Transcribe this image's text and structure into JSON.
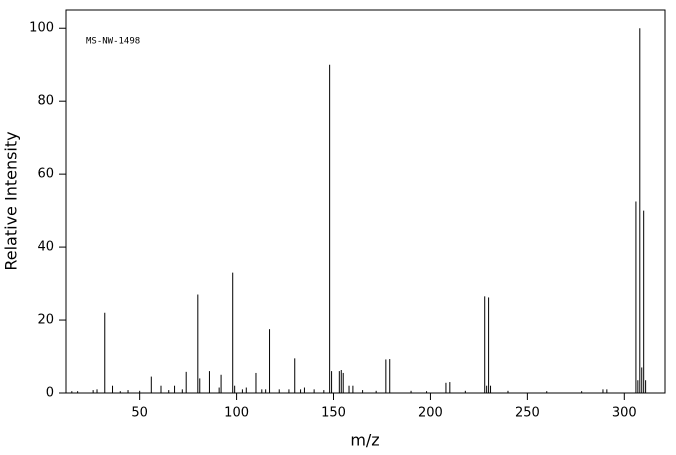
{
  "chart_data": {
    "type": "stem",
    "annotation": "MS-NW-1498",
    "x_label": "m/z",
    "y_label": "Relative Intensity",
    "color": "#000000",
    "x": [
      15,
      18,
      26,
      28,
      32,
      36,
      40,
      44,
      50,
      56,
      61,
      65,
      68,
      72,
      74,
      80,
      81,
      86,
      91,
      92,
      98,
      99,
      103,
      105,
      110,
      113,
      115,
      117,
      122,
      127,
      130,
      133,
      135,
      140,
      145,
      148,
      149,
      153,
      154,
      155,
      158,
      160,
      165,
      172,
      177,
      179,
      190,
      198,
      208,
      210,
      218,
      228,
      229,
      230,
      231,
      240,
      260,
      278,
      289,
      291,
      306,
      307,
      308,
      309,
      310,
      311
    ],
    "values": [
      0.5,
      0.5,
      0.8,
      1,
      22,
      2,
      0.5,
      0.8,
      0.6,
      4.5,
      2,
      0.8,
      2,
      1,
      5.8,
      27,
      4,
      6,
      1.5,
      5,
      33,
      2,
      1,
      1.5,
      5.5,
      1,
      1,
      17.5,
      1,
      1,
      9.5,
      1,
      1.5,
      1,
      0.8,
      90,
      6,
      6,
      6.3,
      5.5,
      2,
      2,
      0.8,
      0.6,
      9.2,
      9.3,
      0.6,
      0.5,
      2.8,
      3,
      0.6,
      26.5,
      2,
      26.2,
      2,
      0.6,
      0.5,
      0.5,
      1,
      1,
      52.5,
      3.5,
      100,
      7,
      50,
      3.5
    ],
    "xlim": [
      12,
      321
    ],
    "ylim": [
      0,
      105
    ],
    "xticks": [
      50,
      100,
      150,
      200,
      250,
      300
    ],
    "yticks": [
      0,
      20,
      40,
      60,
      80,
      100
    ]
  }
}
